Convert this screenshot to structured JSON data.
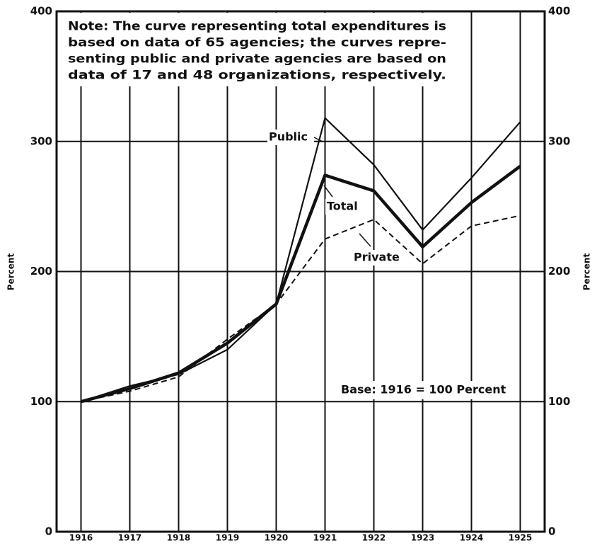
{
  "chart_data": {
    "type": "line",
    "x": [
      1916,
      1917,
      1918,
      1919,
      1920,
      1921,
      1922,
      1923,
      1924,
      1925
    ],
    "xlim": [
      1915.5,
      1925.5
    ],
    "xticks": [
      1916,
      1917,
      1918,
      1919,
      1920,
      1921,
      1922,
      1923,
      1924,
      1925
    ],
    "ylim": [
      0,
      400
    ],
    "yticks": [
      0,
      100,
      200,
      300,
      400
    ],
    "y2lim": [
      0,
      400
    ],
    "y2ticks": [
      0,
      100,
      200,
      300,
      400
    ],
    "ylabel": "Percent",
    "y2label": "Percent",
    "grid": true,
    "series": [
      {
        "name": "Public",
        "color": "#111111",
        "style": "thin",
        "values": [
          100,
          112,
          121,
          140,
          175,
          318,
          282,
          232,
          272,
          315
        ]
      },
      {
        "name": "Total",
        "color": "#111111",
        "style": "thick",
        "values": [
          100,
          110,
          122,
          145,
          175,
          274,
          262,
          219,
          253,
          281
        ]
      },
      {
        "name": "Private",
        "color": "#111111",
        "style": "dashed",
        "values": [
          100,
          108,
          119,
          148,
          175,
          225,
          240,
          206,
          235,
          243
        ]
      }
    ],
    "note": [
      "Note: The curve representing total expenditures is",
      "based on data of 65 agencies; the curves repre-",
      "senting public and private agencies are based on",
      "data of 17 and 48 organizations, respectively."
    ],
    "base_annotation": "Base: 1916 = 100 Percent"
  }
}
